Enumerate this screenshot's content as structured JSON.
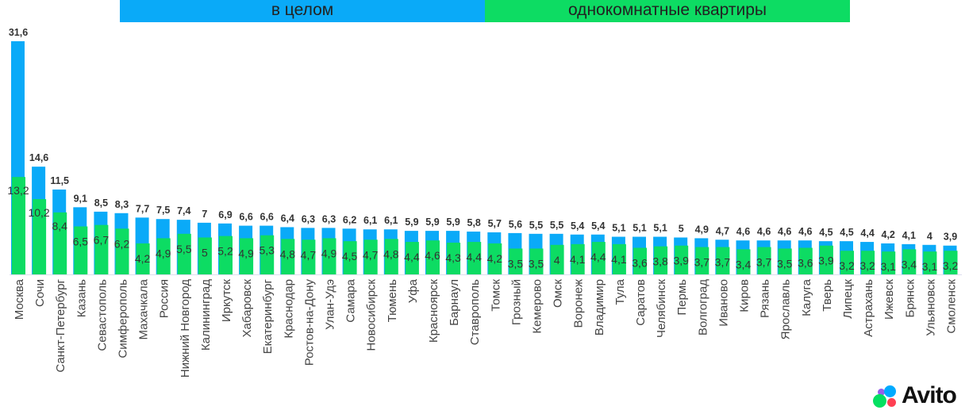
{
  "chart_data": {
    "type": "bar",
    "title": "",
    "legend": [
      "в целом",
      "однокомнатные квартиры"
    ],
    "categories": [
      "Москва",
      "Сочи",
      "Санкт-Петербург",
      "Казань",
      "Севастополь",
      "Симферополь",
      "Махачкала",
      "Россия",
      "Нижний Новгород",
      "Калининград",
      "Иркутск",
      "Хабаровск",
      "Екатеринбург",
      "Краснодар",
      "Ростов-на-Дону",
      "Улан-Удэ",
      "Самара",
      "Новосибирск",
      "Тюмень",
      "Уфа",
      "Красноярск",
      "Барнаул",
      "Ставрополь",
      "Томск",
      "Грозный",
      "Кемерово",
      "Омск",
      "Воронеж",
      "Владимир",
      "Тула",
      "Саратов",
      "Челябинск",
      "Пермь",
      "Волгоград",
      "Иваново",
      "Киров",
      "Рязань",
      "Ярославль",
      "Калуга",
      "Тверь",
      "Липецк",
      "Астрахань",
      "Ижевск",
      "Брянск",
      "Ульяновск",
      "Смоленск"
    ],
    "series": [
      {
        "name": "в целом",
        "color": "#0aaaf8",
        "values": [
          31.6,
          14.6,
          11.5,
          9.1,
          8.5,
          8.3,
          7.7,
          7.5,
          7.4,
          7,
          6.9,
          6.6,
          6.6,
          6.4,
          6.3,
          6.3,
          6.2,
          6.1,
          6.1,
          5.9,
          5.9,
          5.9,
          5.8,
          5.7,
          5.6,
          5.5,
          5.5,
          5.4,
          5.4,
          5.1,
          5.1,
          5.1,
          5,
          4.9,
          4.7,
          4.6,
          4.6,
          4.6,
          4.6,
          4.5,
          4.5,
          4.4,
          4.2,
          4.1,
          4,
          3.9
        ]
      },
      {
        "name": "однокомнатные квартиры",
        "color": "#0ddc63",
        "values": [
          13.2,
          10.2,
          8.4,
          6.5,
          6.7,
          6.2,
          4.2,
          4.9,
          5.5,
          5,
          5.2,
          4.9,
          5.3,
          4.8,
          4.7,
          4.9,
          4.5,
          4.7,
          4.8,
          4.4,
          4.6,
          4.3,
          4.4,
          4.2,
          3.5,
          3.5,
          4,
          4.1,
          4.4,
          4.1,
          3.6,
          3.8,
          3.9,
          3.7,
          3.7,
          3.4,
          3.7,
          3.5,
          3.6,
          3.9,
          3.2,
          3.2,
          3.1,
          3.4,
          3.1,
          3.2
        ]
      }
    ],
    "ylim": [
      0,
      31.6
    ],
    "grid": false,
    "decimal_separator": ","
  },
  "logo": "Avito"
}
